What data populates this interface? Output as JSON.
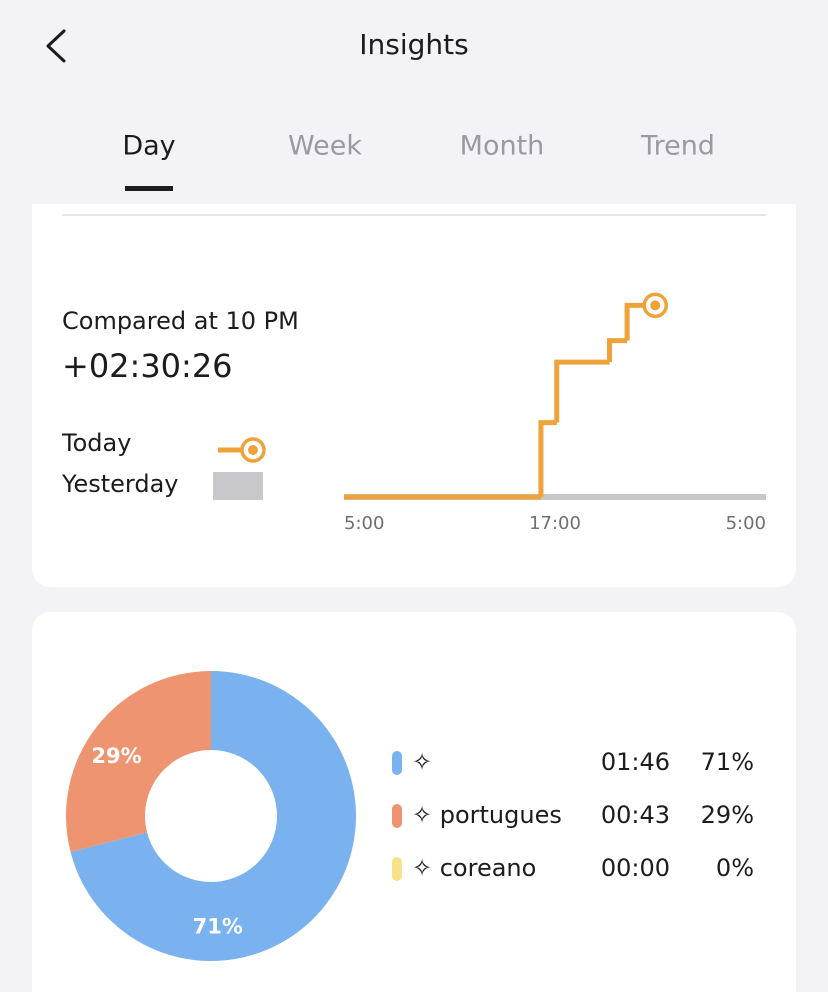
{
  "header": {
    "title": "Insights"
  },
  "tabs": {
    "items": [
      "Day",
      "Week",
      "Month",
      "Trend"
    ],
    "selected": 0
  },
  "comparison": {
    "label": "Compared at 10 PM",
    "value": "+02:30:26"
  },
  "chart_data": [
    {
      "type": "line",
      "step": true,
      "xlim": [
        5,
        29
      ],
      "xticks": [
        {
          "value": 5,
          "label": "5:00"
        },
        {
          "value": 17,
          "label": "17:00"
        },
        {
          "value": 29,
          "label": "5:00"
        }
      ],
      "ylim": [
        0,
        2.7
      ],
      "series": [
        {
          "name": "Today",
          "color": "#eea33a",
          "x": [
            5,
            16.2,
            17.1,
            20.1,
            21.1,
            22.7
          ],
          "values": [
            0,
            0.97,
            1.76,
            2.04,
            2.5,
            2.5
          ]
        },
        {
          "name": "Yesterday",
          "color": "#c8c8cc",
          "x": [
            5,
            29
          ],
          "values": [
            0,
            0
          ]
        }
      ]
    },
    {
      "type": "pie",
      "categories": [
        "✧",
        "✧ portugues",
        "✧ coreano"
      ],
      "values": [
        71,
        29,
        0
      ],
      "value_labels": [
        "71%",
        "29%",
        "0%"
      ],
      "times": [
        "01:46",
        "00:43",
        "00:00"
      ],
      "colors": [
        "#79b2ef",
        "#ee9470",
        "#f9e08a"
      ]
    }
  ]
}
